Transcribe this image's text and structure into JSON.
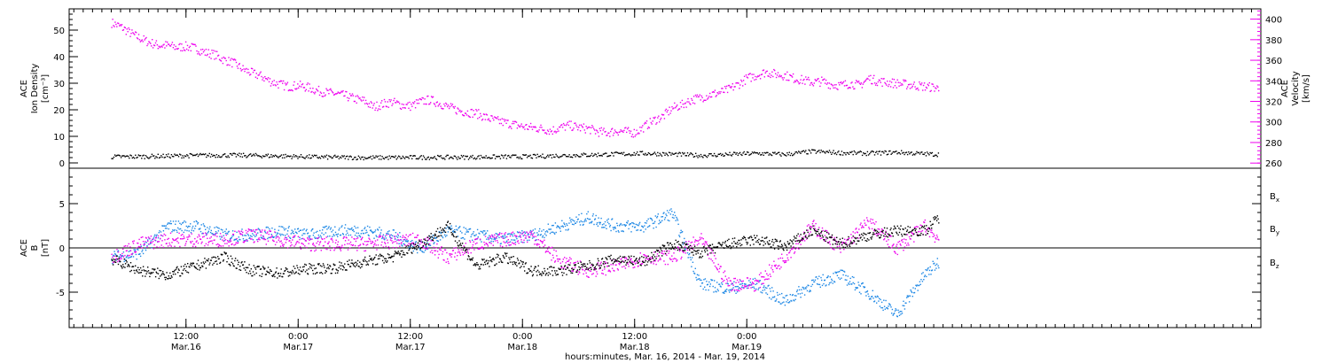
{
  "chart_data": [
    {
      "type": "scatter",
      "panel": "top",
      "left_axis": {
        "label": [
          "ACE",
          "Ion Density",
          "[cm⁻³]"
        ],
        "ylim": [
          -2,
          58
        ],
        "ticks": [
          0,
          10,
          20,
          30,
          40,
          50
        ]
      },
      "right_axis": {
        "label": [
          "ACE",
          "Velocity",
          "[km/s]"
        ],
        "ylim": [
          255,
          410
        ],
        "ticks": [
          260,
          280,
          300,
          320,
          340,
          360,
          380,
          400
        ],
        "color": "#ee00ee"
      },
      "series": [
        {
          "axis": "left",
          "color": "#000000",
          "x": [
            0,
            3,
            6,
            9,
            12,
            15,
            18,
            21,
            24,
            27,
            30,
            33,
            36,
            39,
            42,
            45,
            48,
            51,
            54,
            57,
            60,
            63,
            66,
            69,
            72,
            75,
            78,
            81,
            84,
            87,
            88.5
          ],
          "y": [
            2.5,
            2.6,
            2.8,
            3.0,
            3.1,
            3.0,
            2.8,
            2.5,
            2.3,
            2.2,
            2.2,
            2.3,
            2.3,
            2.4,
            2.5,
            2.6,
            3.0,
            3.2,
            3.5,
            3.8,
            3.5,
            3.0,
            3.4,
            3.8,
            3.4,
            4.5,
            4.0,
            3.8,
            4.2,
            3.6,
            3.4
          ]
        },
        {
          "axis": "right",
          "color": "#ee00ee",
          "x": [
            0,
            1,
            2,
            3,
            4,
            5,
            6,
            7,
            8,
            9,
            10,
            11,
            12,
            13,
            14,
            15,
            16,
            17,
            18,
            19,
            20,
            21,
            22,
            23,
            24,
            25,
            26,
            27,
            28,
            29,
            30,
            31,
            32,
            33,
            34,
            35,
            36,
            37,
            38,
            39,
            40,
            41,
            42,
            43,
            44,
            45,
            46,
            47,
            48,
            49,
            50,
            51,
            52,
            53,
            54,
            55,
            56,
            57,
            58,
            59,
            60,
            61,
            62,
            63,
            64,
            65,
            66,
            67,
            68,
            69,
            70,
            71,
            72,
            73,
            74,
            75,
            76,
            77,
            78,
            79,
            80,
            81,
            82,
            83,
            84,
            85,
            86,
            87,
            88,
            88.5
          ],
          "y": [
            397,
            393,
            387,
            382,
            378,
            375,
            375,
            373,
            374,
            372,
            368,
            366,
            361,
            358,
            352,
            348,
            345,
            340,
            337,
            335,
            336,
            334,
            331,
            329,
            328,
            326,
            323,
            321,
            315,
            318,
            320,
            317,
            316,
            320,
            322,
            319,
            315,
            312,
            310,
            309,
            305,
            302,
            300,
            298,
            296,
            295,
            294,
            292,
            295,
            297,
            295,
            294,
            291,
            290,
            292,
            291,
            290,
            296,
            302,
            306,
            314,
            317,
            322,
            324,
            327,
            329,
            332,
            337,
            343,
            346,
            349,
            347,
            346,
            343,
            341,
            339,
            340,
            337,
            336,
            338,
            336,
            343,
            340,
            339,
            338,
            337,
            336,
            335,
            334,
            333
          ]
        }
      ]
    },
    {
      "type": "scatter",
      "panel": "bottom",
      "left_axis": {
        "label": [
          "ACE",
          "B",
          "[nT]"
        ],
        "ylim": [
          -9,
          9
        ],
        "ticks": [
          -5,
          0,
          5
        ]
      },
      "legend": {
        "position": "right",
        "entries": [
          {
            "name": "B",
            "sub": "x",
            "color": "#000000"
          },
          {
            "name": "B",
            "sub": "y",
            "color": "#1e88e5"
          },
          {
            "name": "B",
            "sub": "z",
            "color": "#ee00ee"
          }
        ]
      },
      "series": [
        {
          "name": "Bx",
          "color": "#000000",
          "x": [
            0,
            3,
            6,
            9,
            12,
            15,
            18,
            21,
            24,
            27,
            30,
            33,
            36,
            39,
            42,
            45,
            48,
            51,
            54,
            57,
            60,
            63,
            66,
            69,
            72,
            75,
            78,
            81,
            84,
            87,
            88.5
          ],
          "y": [
            -1.2,
            -2.5,
            -3.0,
            -2.0,
            -1.0,
            -2.5,
            -2.8,
            -2.3,
            -2.2,
            -1.5,
            -1.0,
            0.5,
            2.5,
            -2.0,
            -1.0,
            -2.5,
            -2.5,
            -2.0,
            -1.2,
            -1.5,
            0.5,
            -0.5,
            0.5,
            1.0,
            0.2,
            2.0,
            0.5,
            1.5,
            2.0,
            2.0,
            3.5
          ]
        },
        {
          "name": "By",
          "color": "#1e88e5",
          "x": [
            0,
            3,
            6,
            9,
            12,
            15,
            18,
            21,
            24,
            27,
            30,
            33,
            36,
            39,
            42,
            45,
            48,
            51,
            54,
            57,
            60,
            63,
            66,
            69,
            72,
            75,
            78,
            81,
            84,
            87,
            88.5
          ],
          "y": [
            -1.0,
            -0.5,
            2.5,
            2.5,
            1.5,
            1.5,
            2.0,
            1.5,
            2.0,
            2.0,
            1.5,
            0.0,
            2.0,
            1.5,
            1.0,
            1.5,
            2.5,
            3.5,
            2.5,
            2.5,
            4.0,
            -4.0,
            -4.5,
            -4.0,
            -6.0,
            -4.0,
            -3.0,
            -5.0,
            -7.5,
            -3.0,
            -1.5
          ]
        },
        {
          "name": "Bz",
          "color": "#ee00ee",
          "x": [
            0,
            3,
            6,
            9,
            12,
            15,
            18,
            21,
            24,
            27,
            30,
            33,
            36,
            39,
            42,
            45,
            48,
            51,
            54,
            57,
            60,
            63,
            66,
            69,
            72,
            75,
            78,
            81,
            84,
            87,
            88.5
          ],
          "y": [
            -1.0,
            0.5,
            1.0,
            1.0,
            1.0,
            1.5,
            1.0,
            0.5,
            0.5,
            0.5,
            0.8,
            1.0,
            -1.0,
            0.5,
            1.0,
            1.5,
            -1.5,
            -2.5,
            -2.0,
            -1.0,
            -1.0,
            1.0,
            -4.0,
            -4.0,
            -1.0,
            2.5,
            0.0,
            3.0,
            0.0,
            2.5,
            1.0
          ]
        }
      ]
    }
  ],
  "x_axis": {
    "xlim": [
      -4.5,
      123
    ],
    "ticks": [
      {
        "x": 8,
        "time": "12:00",
        "date": "Mar.16"
      },
      {
        "x": 20,
        "time": "0:00",
        "date": "Mar.17"
      },
      {
        "x": 32,
        "time": "12:00",
        "date": "Mar.17"
      },
      {
        "x": 44,
        "time": "0:00",
        "date": "Mar.18"
      },
      {
        "x": 56,
        "time": "12:00",
        "date": "Mar.18"
      },
      {
        "x": 68,
        "time": "0:00",
        "date": "Mar.19"
      }
    ],
    "xlabel": "hours:minutes, Mar. 16, 2014 - Mar. 19, 2014"
  }
}
